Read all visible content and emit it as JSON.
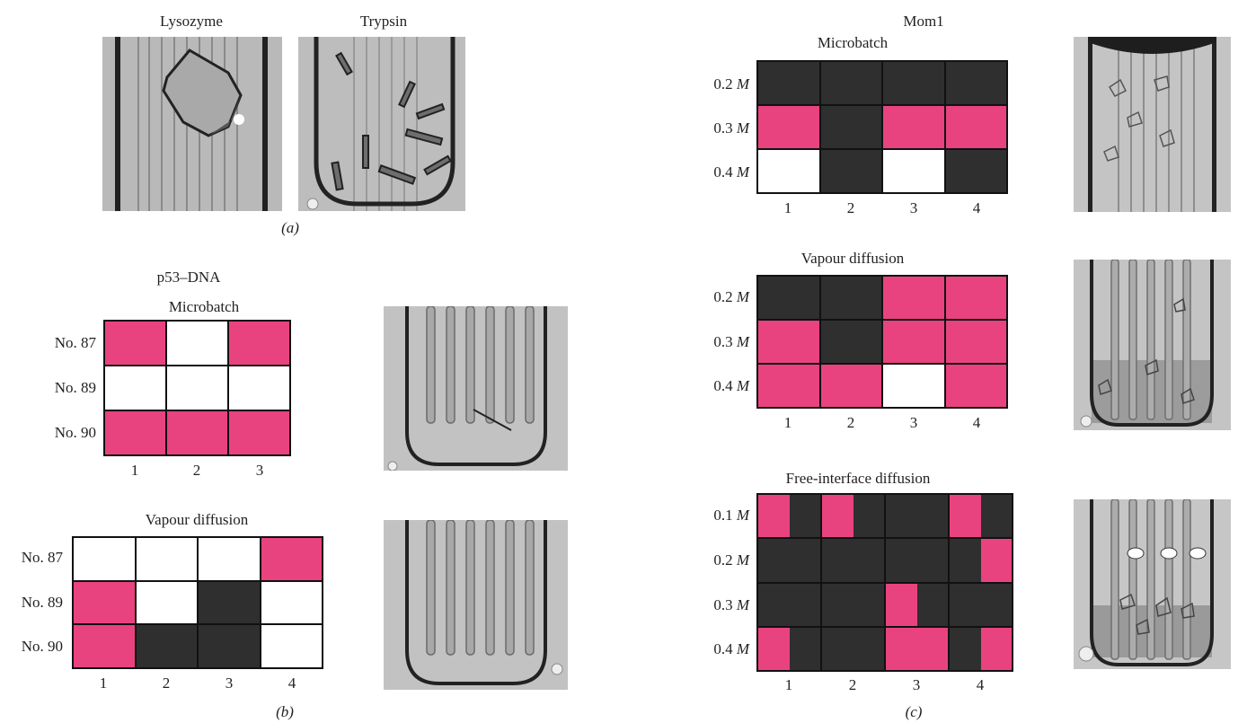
{
  "colors": {
    "dark": "#2f2f2f",
    "pink": "#e8437f",
    "white": "#ffffff"
  },
  "panel_a": {
    "photo_labels": [
      "Lysozyme",
      "Trypsin"
    ],
    "caption": "(a)"
  },
  "panel_b": {
    "title": "p53–DNA",
    "caption": "(b)",
    "microbatch": {
      "title": "Microbatch",
      "rows": [
        "No. 87",
        "No. 89",
        "No. 90"
      ],
      "cols": [
        "1",
        "2",
        "3"
      ],
      "cells": [
        [
          "pink",
          "white",
          "pink"
        ],
        [
          "white",
          "white",
          "white"
        ],
        [
          "pink",
          "pink",
          "pink"
        ]
      ]
    },
    "vapour": {
      "title": "Vapour diffusion",
      "rows": [
        "No. 87",
        "No. 89",
        "No. 90"
      ],
      "cols": [
        "1",
        "2",
        "3",
        "4"
      ],
      "cells": [
        [
          "white",
          "white",
          "white",
          "pink"
        ],
        [
          "pink",
          "white",
          "dark",
          "white"
        ],
        [
          "pink",
          "dark",
          "dark",
          "white"
        ]
      ]
    }
  },
  "panel_c": {
    "title": "Mom1",
    "caption": "(c)",
    "unit": "M",
    "microbatch": {
      "title": "Microbatch",
      "rows": [
        "0.2",
        "0.3",
        "0.4"
      ],
      "cols": [
        "1",
        "2",
        "3",
        "4"
      ],
      "cells": [
        [
          "dark",
          "dark",
          "dark",
          "dark"
        ],
        [
          "pink",
          "dark",
          "pink",
          "pink"
        ],
        [
          "white",
          "dark",
          "white",
          "dark"
        ]
      ]
    },
    "vapour": {
      "title": "Vapour diffusion",
      "rows": [
        "0.2",
        "0.3",
        "0.4"
      ],
      "cols": [
        "1",
        "2",
        "3",
        "4"
      ],
      "cells": [
        [
          "dark",
          "dark",
          "pink",
          "pink"
        ],
        [
          "pink",
          "dark",
          "pink",
          "pink"
        ],
        [
          "pink",
          "pink",
          "white",
          "pink"
        ]
      ]
    },
    "free_interface": {
      "title": "Free-interface diffusion",
      "rows": [
        "0.1",
        "0.2",
        "0.3",
        "0.4"
      ],
      "cols": [
        "1",
        "2",
        "3",
        "4"
      ],
      "cells": [
        [
          [
            "pink",
            "dark"
          ],
          [
            "pink",
            "dark"
          ],
          [
            "dark",
            "dark"
          ],
          [
            "pink",
            "dark"
          ]
        ],
        [
          [
            "dark",
            "dark"
          ],
          [
            "dark",
            "dark"
          ],
          [
            "dark",
            "dark"
          ],
          [
            "dark",
            "pink"
          ]
        ],
        [
          [
            "dark",
            "dark"
          ],
          [
            "dark",
            "dark"
          ],
          [
            "pink",
            "dark"
          ],
          [
            "dark",
            "dark"
          ]
        ],
        [
          [
            "pink",
            "dark"
          ],
          [
            "dark",
            "dark"
          ],
          [
            "pink",
            "pink"
          ],
          [
            "dark",
            "pink"
          ]
        ]
      ]
    }
  }
}
